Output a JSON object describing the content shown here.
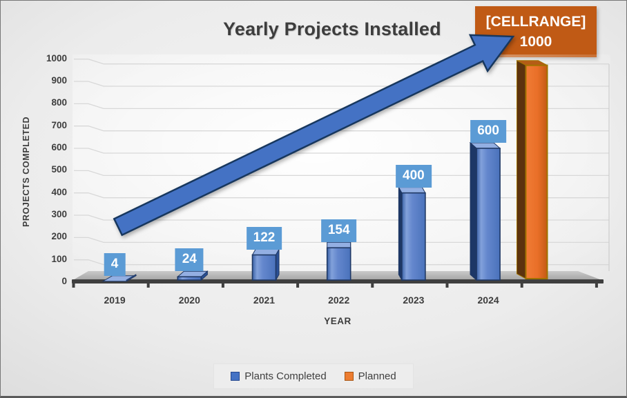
{
  "title": "Yearly Projects Installed",
  "callout": {
    "line1": "[CELLRANGE]",
    "line2": "1000"
  },
  "legend": [
    {
      "label": "Plants Completed",
      "color": "#4472c4",
      "border": "#24478f"
    },
    {
      "label": "Planned",
      "color": "#ed7d31",
      "border": "#a85511"
    }
  ],
  "chart_data": {
    "type": "bar",
    "style": "3d",
    "title": "Yearly Projects Installed",
    "xlabel": "YEAR",
    "ylabel": "PROJECTS COMPLETED",
    "categories": [
      "2019",
      "2020",
      "2021",
      "2022",
      "2023",
      "2024",
      ""
    ],
    "series": [
      {
        "name": "Plants Completed",
        "color": "#4472c4",
        "values": [
          4,
          24,
          122,
          154,
          400,
          600,
          null
        ]
      },
      {
        "name": "Planned",
        "color": "#ed7d31",
        "values": [
          null,
          null,
          null,
          null,
          null,
          null,
          1000
        ]
      }
    ],
    "data_labels_blue": [
      "4",
      "24",
      "122",
      "154",
      "400",
      "600"
    ],
    "data_label_planned": [
      "[CELLRANGE]",
      "1000"
    ],
    "ylim": [
      0,
      1000
    ],
    "ytick_step": 100,
    "yticks": [
      0,
      100,
      200,
      300,
      400,
      500,
      600,
      700,
      800,
      900,
      1000
    ],
    "grid": true,
    "legend_position": "bottom",
    "annotations": [
      "upward growth arrow from lower-left to the Planned callout"
    ]
  },
  "colors": {
    "blue_front_stops": [
      "#3a61a6",
      "#82a1db",
      "#6487cd",
      "#4a72bb"
    ],
    "blue_top": "#93afe2",
    "blue_side_right": "#2b5094",
    "blue_side_left": "#1d3766",
    "blue_outline": "#1f3864",
    "label_bg": "#5b9bd5",
    "label_text": "#ffffff",
    "orange_front_stops": [
      "#f07c36",
      "#e96f28",
      "#c45a14"
    ],
    "orange_top": "#b55c16",
    "orange_side": "#5c330e",
    "orange_outline": "#a07200",
    "callout_bg": "#c05a15",
    "arrow_fill": "#4472c4",
    "arrow_outline": "#17375e",
    "grid_line": "#d8d8d8",
    "axis_text": "#3d3d3d",
    "floor_front_edge": "#3f3f3f"
  }
}
